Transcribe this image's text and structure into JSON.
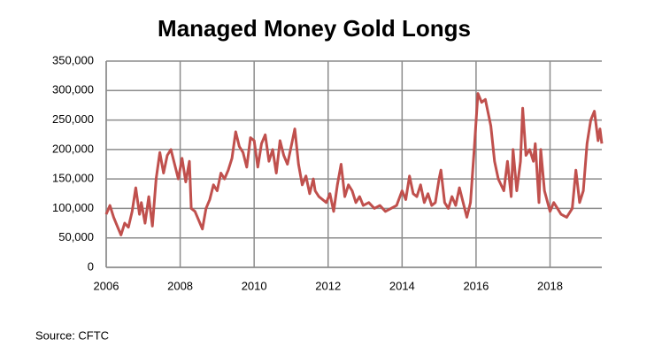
{
  "chart_data": {
    "type": "line",
    "title": "Managed Money Gold Longs",
    "source": "Source: CFTC",
    "x": [
      2006.0,
      2006.1,
      2006.2,
      2006.3,
      2006.4,
      2006.5,
      2006.6,
      2006.7,
      2006.8,
      2006.9,
      2006.95,
      2007.05,
      2007.15,
      2007.25,
      2007.35,
      2007.45,
      2007.55,
      2007.65,
      2007.75,
      2007.85,
      2007.95,
      2008.05,
      2008.15,
      2008.25,
      2008.3,
      2008.4,
      2008.5,
      2008.6,
      2008.7,
      2008.8,
      2008.9,
      2009.0,
      2009.1,
      2009.2,
      2009.3,
      2009.4,
      2009.5,
      2009.6,
      2009.7,
      2009.8,
      2009.9,
      2010.0,
      2010.1,
      2010.2,
      2010.3,
      2010.4,
      2010.5,
      2010.6,
      2010.7,
      2010.8,
      2010.9,
      2011.0,
      2011.1,
      2011.2,
      2011.3,
      2011.4,
      2011.5,
      2011.6,
      2011.65,
      2011.75,
      2011.85,
      2011.95,
      2012.05,
      2012.15,
      2012.25,
      2012.35,
      2012.45,
      2012.55,
      2012.65,
      2012.75,
      2012.85,
      2012.95,
      2013.1,
      2013.25,
      2013.4,
      2013.55,
      2013.7,
      2013.85,
      2014.0,
      2014.1,
      2014.2,
      2014.3,
      2014.4,
      2014.5,
      2014.6,
      2014.7,
      2014.8,
      2014.9,
      2015.0,
      2015.05,
      2015.15,
      2015.25,
      2015.35,
      2015.45,
      2015.55,
      2015.65,
      2015.75,
      2015.85,
      2015.95,
      2016.05,
      2016.15,
      2016.25,
      2016.4,
      2016.5,
      2016.6,
      2016.75,
      2016.85,
      2016.95,
      2017.0,
      2017.1,
      2017.2,
      2017.26,
      2017.35,
      2017.45,
      2017.55,
      2017.6,
      2017.7,
      2017.75,
      2017.85,
      2018.0,
      2018.1,
      2018.2,
      2018.3,
      2018.45,
      2018.6,
      2018.7,
      2018.8,
      2018.9,
      2019.0,
      2019.1,
      2019.2,
      2019.3,
      2019.35,
      2019.4
    ],
    "series": [
      {
        "name": "Managed Money Gold Longs",
        "color": "#c0504d",
        "values": [
          90000,
          105000,
          85000,
          70000,
          55000,
          75000,
          68000,
          95000,
          135000,
          90000,
          110000,
          75000,
          120000,
          70000,
          150000,
          195000,
          160000,
          190000,
          200000,
          175000,
          150000,
          185000,
          145000,
          180000,
          100000,
          95000,
          80000,
          65000,
          100000,
          115000,
          140000,
          130000,
          160000,
          150000,
          165000,
          185000,
          230000,
          205000,
          195000,
          170000,
          220000,
          215000,
          170000,
          210000,
          225000,
          180000,
          200000,
          160000,
          215000,
          190000,
          175000,
          205000,
          235000,
          175000,
          140000,
          155000,
          125000,
          150000,
          130000,
          120000,
          115000,
          110000,
          125000,
          95000,
          140000,
          175000,
          120000,
          140000,
          130000,
          110000,
          120000,
          105000,
          110000,
          100000,
          105000,
          95000,
          100000,
          105000,
          130000,
          115000,
          155000,
          125000,
          120000,
          140000,
          110000,
          125000,
          105000,
          110000,
          150000,
          165000,
          110000,
          100000,
          120000,
          105000,
          135000,
          110000,
          85000,
          110000,
          200000,
          295000,
          280000,
          285000,
          240000,
          180000,
          150000,
          130000,
          180000,
          120000,
          200000,
          130000,
          180000,
          270000,
          190000,
          200000,
          180000,
          210000,
          110000,
          200000,
          130000,
          95000,
          110000,
          100000,
          90000,
          85000,
          100000,
          165000,
          110000,
          130000,
          210000,
          250000,
          265000,
          215000,
          235000,
          210000
        ]
      }
    ],
    "xlim": [
      2006,
      2019.4
    ],
    "xticks": [
      2006,
      2008,
      2010,
      2012,
      2014,
      2016,
      2018
    ],
    "ylim": [
      0,
      350000
    ],
    "yticks": [
      0,
      {
        "value": 50000,
        "label": "50,000"
      },
      {
        "value": 100000,
        "label": "100,000"
      },
      {
        "value": 150000,
        "label": "150,000"
      },
      {
        "value": 200000,
        "label": "200,000"
      },
      {
        "value": 250000,
        "label": "250,000"
      },
      {
        "value": 300000,
        "label": "300,000"
      },
      {
        "value": 350000,
        "label": "350,000"
      }
    ],
    "grid": true
  }
}
